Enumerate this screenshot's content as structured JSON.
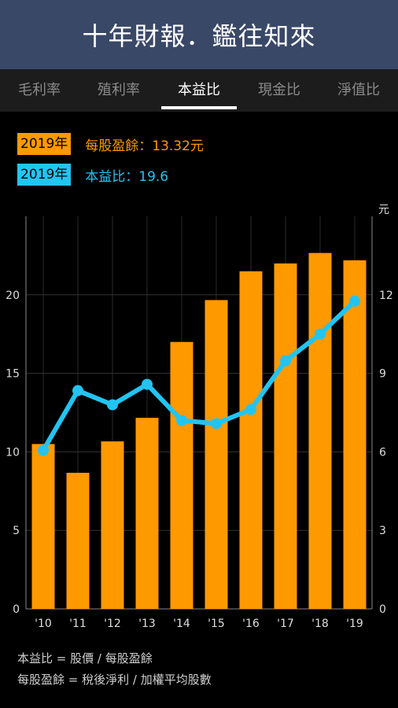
{
  "header": {
    "title": "十年財報．鑑往知來"
  },
  "tabs": [
    {
      "label": "毛利率",
      "active": false
    },
    {
      "label": "殖利率",
      "active": false
    },
    {
      "label": "本益比",
      "active": true
    },
    {
      "label": "現金比",
      "active": false
    },
    {
      "label": "淨值比",
      "active": false
    }
  ],
  "legend": {
    "eps": {
      "year": "2019年",
      "text": "每股盈餘：13.32元"
    },
    "pe": {
      "year": "2019年",
      "text": "本益比：19.6"
    }
  },
  "footnotes": {
    "line1": "本益比 = 股價 / 每股盈餘",
    "line2": "每股盈餘 = 稅後淨利 / 加權平均股數"
  },
  "colors": {
    "eps": "#ff9900",
    "pe": "#22c4f2",
    "header_bg": "#3a4868"
  },
  "chart_data": {
    "type": "bar+line",
    "categories": [
      "'10",
      "'11",
      "'12",
      "'13",
      "'14",
      "'15",
      "'16",
      "'17",
      "'18",
      "'19"
    ],
    "series": [
      {
        "type": "bar",
        "axis": "right",
        "values": [
          6.3,
          5.2,
          6.4,
          7.3,
          10.2,
          11.8,
          12.9,
          13.2,
          13.6,
          13.32
        ]
      },
      {
        "type": "line",
        "axis": "left",
        "values": [
          10.1,
          13.9,
          13.0,
          14.3,
          12.0,
          11.8,
          12.7,
          15.8,
          17.5,
          19.6
        ]
      }
    ],
    "left_axis": {
      "min": 0,
      "max": 25,
      "ticks": [
        0,
        5,
        10,
        15,
        20
      ]
    },
    "right_axis": {
      "min": 0,
      "max": 15,
      "ticks": [
        0,
        3,
        6,
        9,
        12
      ],
      "unit": "元"
    },
    "grid": true
  }
}
